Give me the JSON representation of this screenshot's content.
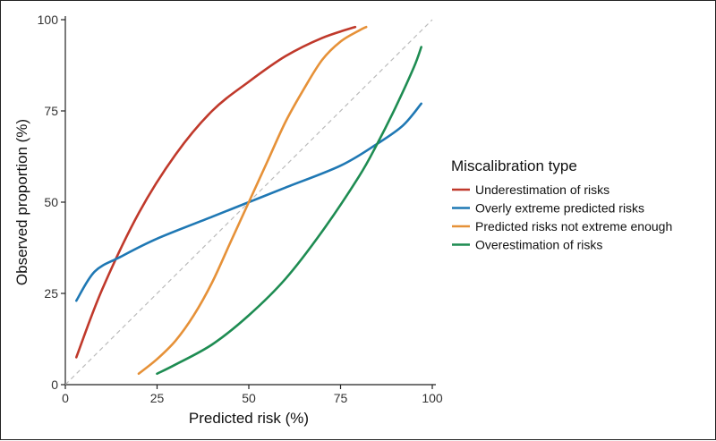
{
  "chart_data": {
    "type": "line",
    "title": "",
    "xlabel": "Predicted risk (%)",
    "ylabel": "Observed proportion (%)",
    "xlim": [
      0,
      100
    ],
    "ylim": [
      0,
      100
    ],
    "xticks": [
      0,
      25,
      50,
      75,
      100
    ],
    "yticks": [
      0,
      25,
      50,
      75,
      100
    ],
    "xtick_labels": [
      "0",
      "25",
      "50",
      "75",
      "100"
    ],
    "ytick_labels": [
      "0",
      "25",
      "50",
      "75",
      "100"
    ],
    "grid": false,
    "reference_line": {
      "name": "Perfect calibration",
      "x": [
        0,
        100
      ],
      "y": [
        0,
        100
      ],
      "color": "#bbbbbb",
      "style": "dashed"
    },
    "legend": {
      "title": "Miscalibration type",
      "position": "right"
    },
    "series": [
      {
        "name": "Underestimation of risks",
        "color": "#c0392b",
        "x": [
          3,
          10,
          20,
          30,
          40,
          50,
          60,
          70,
          79
        ],
        "y": [
          7.5,
          26,
          47,
          63,
          75,
          83,
          90,
          95,
          98
        ]
      },
      {
        "name": "Overly extreme predicted risks",
        "color": "#1f78b4",
        "x": [
          3,
          8,
          15,
          25,
          40,
          50,
          60,
          75,
          85,
          92,
          97
        ],
        "y": [
          23,
          31,
          35,
          40,
          46,
          50,
          54,
          60,
          66,
          71,
          77
        ]
      },
      {
        "name": "Predicted risks not extreme enough",
        "color": "#e69138",
        "x": [
          20,
          25,
          30,
          35,
          40,
          45,
          50,
          55,
          60,
          65,
          70,
          75,
          80,
          82
        ],
        "y": [
          3,
          7,
          12,
          19,
          28,
          39,
          50,
          61,
          72,
          81,
          89,
          94,
          97,
          98
        ]
      },
      {
        "name": "Overestimation of risks",
        "color": "#1e8c52",
        "x": [
          25,
          30,
          40,
          50,
          60,
          70,
          80,
          85,
          90,
          95,
          97
        ],
        "y": [
          3,
          5.5,
          11,
          19,
          29,
          42,
          57,
          66,
          76,
          87,
          92.5
        ]
      }
    ]
  }
}
